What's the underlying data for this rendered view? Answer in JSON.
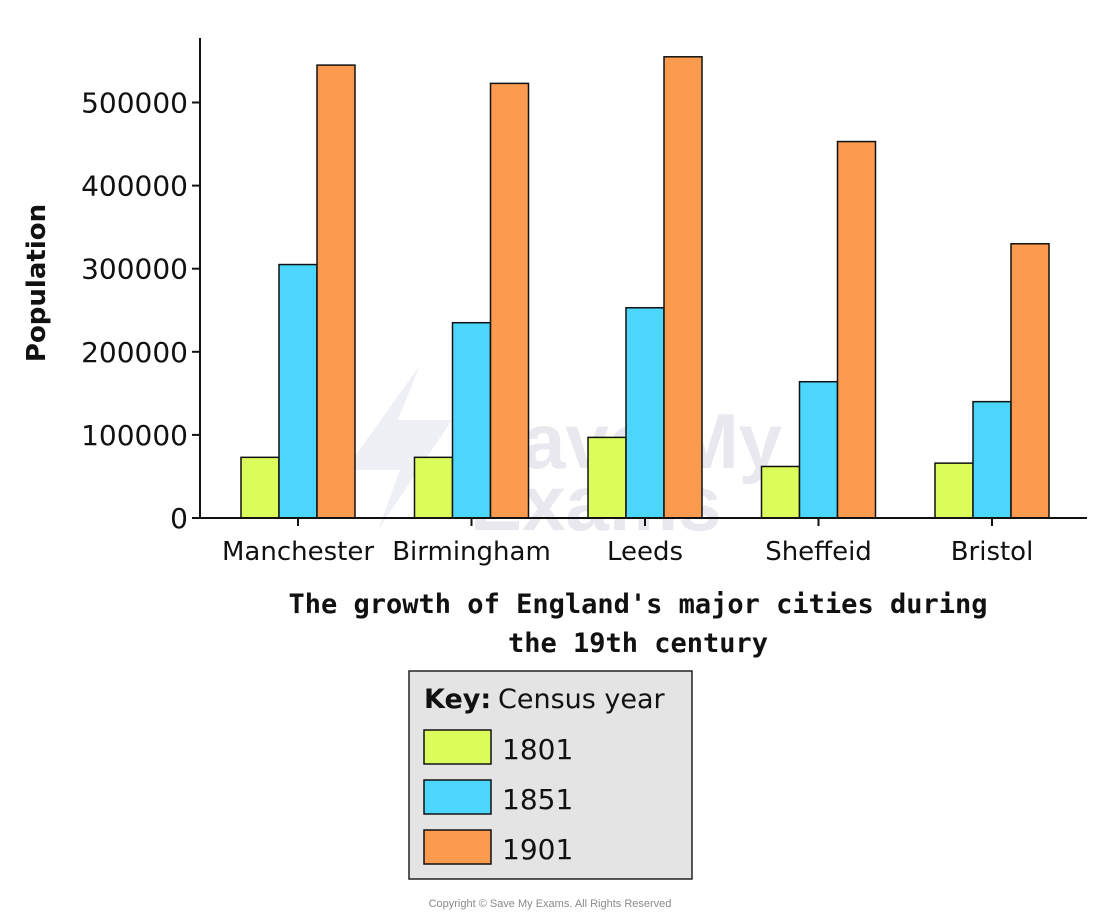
{
  "chart_data": {
    "type": "bar",
    "title": "The growth of England's major cities during the 19th century",
    "title_lines": [
      "The growth of England's major cities during",
      "the 19th century"
    ],
    "xlabel": "",
    "ylabel": "Population",
    "categories": [
      "Manchester",
      "Birmingham",
      "Leeds",
      "Sheffeid",
      "Bristol"
    ],
    "series": [
      {
        "name": "1801",
        "color": "#dcfc5c",
        "values": [
          73000,
          73000,
          97000,
          62000,
          66000
        ]
      },
      {
        "name": "1851",
        "color": "#4cd6fc",
        "values": [
          305000,
          235000,
          253000,
          164000,
          140000
        ]
      },
      {
        "name": "1901",
        "color": "#fc9a50",
        "values": [
          545000,
          523000,
          555000,
          453000,
          330000
        ]
      }
    ],
    "yticks": [
      0,
      100000,
      200000,
      300000,
      400000,
      500000
    ],
    "ytick_labels": [
      "0",
      "100000",
      "200000",
      "300000",
      "400000",
      "500000"
    ],
    "ylim": [
      0,
      580000
    ],
    "grid": false,
    "legend": {
      "placement": "bottom-center",
      "heading": "Key:",
      "subtitle": "Census year"
    }
  },
  "watermark": {
    "line1": "Save My",
    "line2": "Exams"
  },
  "copyright": "Copyright © Save My Exams. All Rights Reserved"
}
